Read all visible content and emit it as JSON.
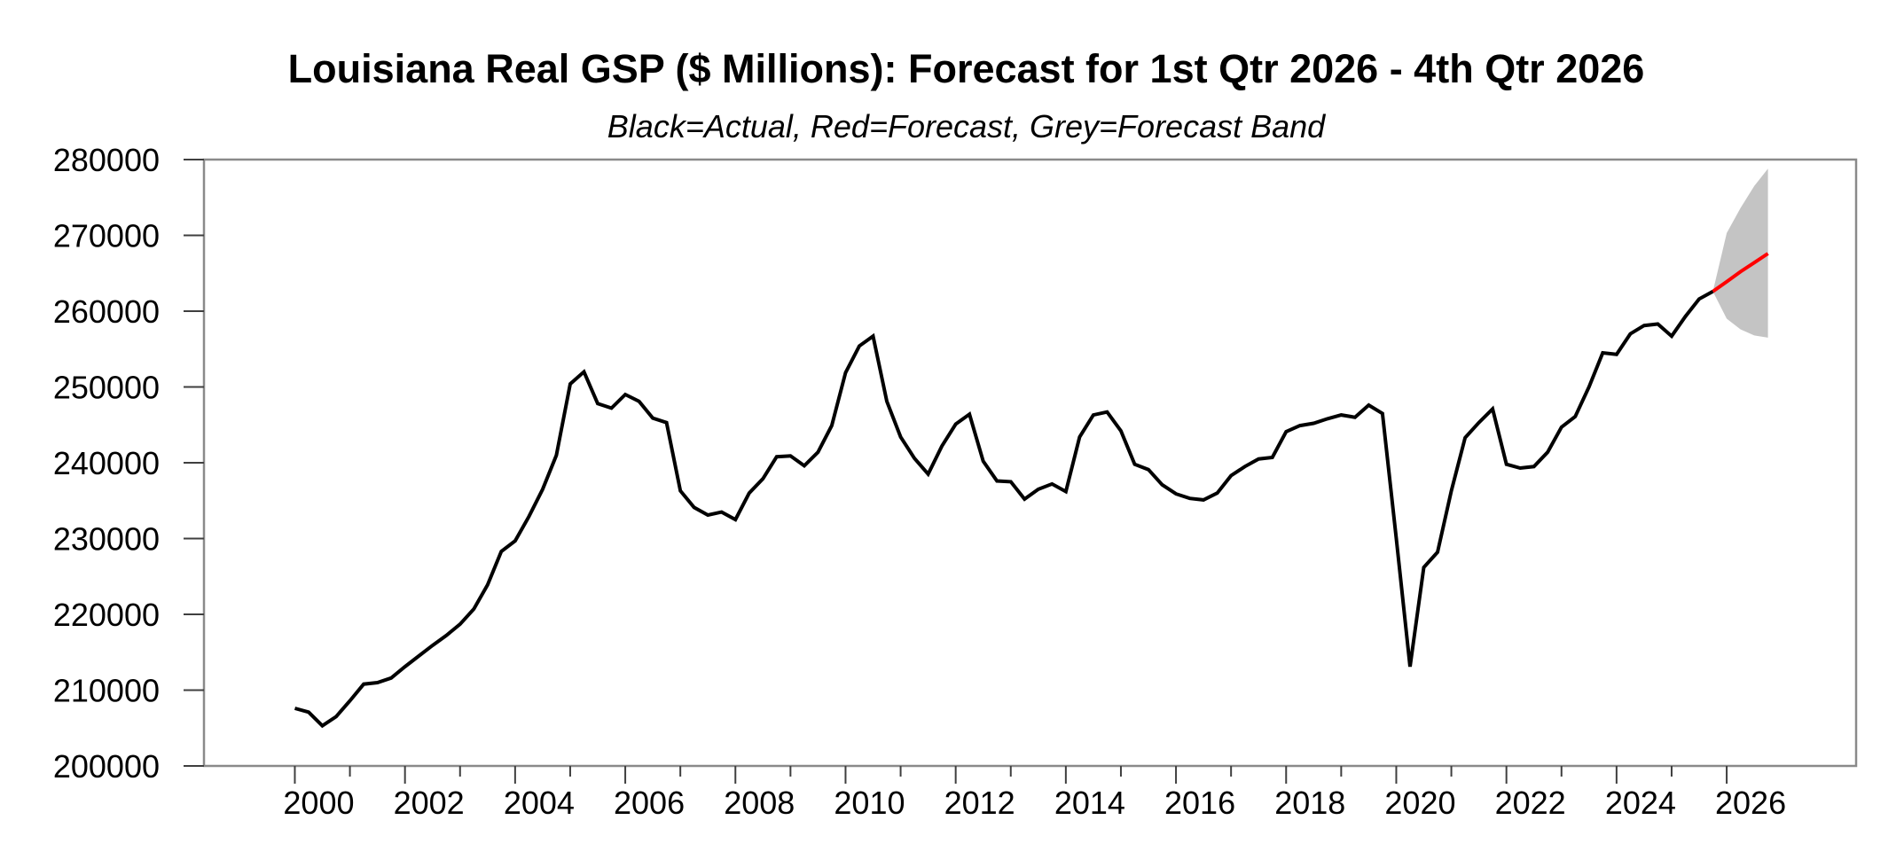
{
  "page": {
    "title": "Louisiana Real GSP ($ Millions): Forecast for 1st Qtr 2026 - 4th Qtr 2026",
    "subtitle": "Black=Actual, Red=Forecast, Grey=Forecast Band"
  },
  "chart_data": {
    "type": "line",
    "title": "Louisiana Real GSP ($ Millions): Forecast for 1st Qtr 2026 - 4th Qtr 2026",
    "subtitle": "Black=Actual, Red=Forecast, Grey=Forecast Band",
    "legend_position": "subtitle-text",
    "grid": false,
    "x_axis": {
      "range": [
        1998.35,
        2028.35
      ],
      "major_ticks": [
        2000,
        2002,
        2004,
        2006,
        2008,
        2010,
        2012,
        2014,
        2016,
        2018,
        2020,
        2022,
        2024,
        2026
      ],
      "minor_ticks": [
        2001,
        2003,
        2005,
        2007,
        2009,
        2011,
        2013,
        2015,
        2017,
        2019,
        2021,
        2023,
        2025
      ]
    },
    "y_axis": {
      "range": [
        200000,
        280000
      ],
      "ticks": [
        200000,
        210000,
        220000,
        230000,
        240000,
        250000,
        260000,
        270000,
        280000
      ]
    },
    "series": [
      {
        "name": "Actual",
        "color": "#000000",
        "x_start": 2000.0,
        "x_step": 0.25,
        "values": [
          207600,
          207100,
          205300,
          206500,
          208600,
          210800,
          211000,
          211600,
          213100,
          214500,
          215900,
          217200,
          218700,
          220700,
          223900,
          228300,
          229700,
          232900,
          236500,
          241000,
          250400,
          252000,
          247800,
          247200,
          249000,
          248100,
          245900,
          245300,
          236300,
          234100,
          233100,
          233500,
          232500,
          236000,
          237900,
          240800,
          240900,
          239600,
          241400,
          244900,
          251900,
          255400,
          256700,
          248100,
          243400,
          240600,
          238500,
          242200,
          245100,
          246400,
          240200,
          237600,
          237500,
          235200,
          236500,
          237200,
          236200,
          243400,
          246300,
          246700,
          244200,
          239800,
          239100,
          237100,
          235900,
          235300,
          235100,
          236000,
          238300,
          239500,
          240500,
          240700,
          244100,
          244900,
          245200,
          245800,
          246300,
          246000,
          247600,
          246500,
          230000,
          213100,
          226200,
          228200,
          236300,
          243300,
          245300,
          247100,
          239800,
          239300,
          239500,
          241400,
          244700,
          246100,
          250000,
          254500,
          254300,
          257000,
          258100,
          258300,
          256700,
          259300,
          261600,
          262600
        ]
      },
      {
        "name": "Forecast",
        "color": "#ff0000",
        "x_start": 2026.0,
        "x_step": 0.25,
        "connect_from": {
          "x": 2025.75,
          "y": 262600
        },
        "values": [
          263900,
          265200,
          266400,
          267600
        ]
      }
    ],
    "band": {
      "name": "Forecast Band",
      "color": "#c4c4c4",
      "x_start": 2026.0,
      "x_step": 0.25,
      "anchor": {
        "x": 2025.75,
        "y": 262600
      },
      "upper": [
        270300,
        273600,
        276500,
        278800
      ],
      "lower": [
        259000,
        257600,
        256800,
        256500
      ]
    },
    "frame_color": "#8a8a8a",
    "tick_color": "#3f3f3f"
  }
}
